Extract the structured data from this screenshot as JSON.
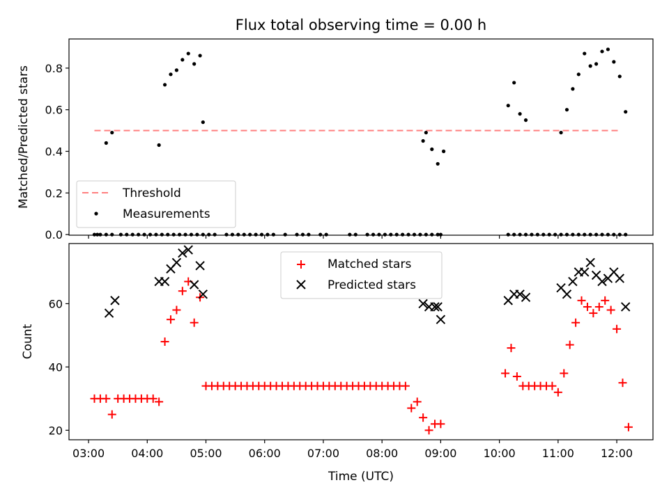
{
  "chart_data": [
    {
      "type": "scatter",
      "title": "Flux total observing time = 0.00 h",
      "xlabel": "",
      "ylabel": "Matched/Predicted stars",
      "xlim": [
        "03:00",
        "12:30"
      ],
      "ylim": [
        0,
        0.9
      ],
      "yticks": [
        "0.0",
        "0.2",
        "0.4",
        "0.6",
        "0.8"
      ],
      "ytick_values": [
        0,
        0.2,
        0.4,
        0.6,
        0.8
      ],
      "grid": false,
      "legend": "lower-left",
      "threshold": {
        "name": "Threshold",
        "value": 0.5,
        "x_start": "03:06",
        "x_end": "12:03",
        "color": "#ff7f7f"
      },
      "series": [
        {
          "name": "Measurements",
          "color": "#000000",
          "x": [
            "03:06",
            "03:09",
            "03:12",
            "03:18",
            "03:24",
            "03:33",
            "03:39",
            "03:45",
            "03:51",
            "03:57",
            "04:03",
            "04:09",
            "04:15",
            "04:21",
            "04:27",
            "04:33",
            "04:39",
            "04:45",
            "04:51",
            "04:57",
            "05:03",
            "05:09",
            "05:21",
            "05:27",
            "05:33",
            "05:39",
            "05:45",
            "05:51",
            "05:57",
            "06:03",
            "06:09",
            "06:21",
            "06:33",
            "06:39",
            "06:45",
            "06:57",
            "07:03",
            "07:27",
            "07:33",
            "07:45",
            "07:51",
            "07:57",
            "08:03",
            "08:09",
            "08:15",
            "08:21",
            "08:27",
            "08:33",
            "08:39",
            "08:45",
            "08:51",
            "08:57",
            "09:00",
            "10:09",
            "10:15",
            "10:21",
            "10:27",
            "10:33",
            "10:39",
            "10:45",
            "10:51",
            "10:57",
            "11:03",
            "11:09",
            "11:15",
            "11:21",
            "11:27",
            "11:33",
            "11:39",
            "11:45",
            "11:51",
            "11:57",
            "12:03",
            "12:09",
            "03:18",
            "03:24",
            "04:12",
            "04:18",
            "04:24",
            "04:30",
            "04:36",
            "04:42",
            "04:48",
            "04:54",
            "04:57",
            "08:42",
            "08:45",
            "08:51",
            "08:57",
            "09:03",
            "10:09",
            "10:15",
            "10:21",
            "10:27",
            "11:03",
            "11:09",
            "11:15",
            "11:21",
            "11:27",
            "11:33",
            "11:39",
            "11:45",
            "11:51",
            "11:57",
            "12:03",
            "12:09"
          ],
          "y": [
            0,
            0,
            0,
            0,
            0,
            0,
            0,
            0,
            0,
            0,
            0,
            0,
            0,
            0,
            0,
            0,
            0,
            0,
            0,
            0,
            0,
            0,
            0,
            0,
            0,
            0,
            0,
            0,
            0,
            0,
            0,
            0,
            0,
            0,
            0,
            0,
            0,
            0,
            0,
            0,
            0,
            0,
            0,
            0,
            0,
            0,
            0,
            0,
            0,
            0,
            0,
            0,
            0,
            0,
            0,
            0,
            0,
            0,
            0,
            0,
            0,
            0,
            0,
            0,
            0,
            0,
            0,
            0,
            0,
            0,
            0,
            0,
            0,
            0,
            0.44,
            0.49,
            0.43,
            0.72,
            0.77,
            0.79,
            0.84,
            0.87,
            0.82,
            0.86,
            0.54,
            0.45,
            0.49,
            0.41,
            0.34,
            0.4,
            0.62,
            0.73,
            0.58,
            0.55,
            0.49,
            0.6,
            0.7,
            0.77,
            0.87,
            0.81,
            0.82,
            0.88,
            0.89,
            0.83,
            0.76,
            0.59
          ]
        }
      ]
    },
    {
      "type": "scatter",
      "title": "",
      "xlabel": "Time (UTC)",
      "ylabel": "Count",
      "xlim": [
        "03:00",
        "12:30"
      ],
      "xticks": [
        "03:00",
        "04:00",
        "05:00",
        "06:00",
        "07:00",
        "08:00",
        "09:00",
        "10:00",
        "11:00",
        "12:00"
      ],
      "ylim": [
        17,
        79
      ],
      "yticks": [
        "20",
        "40",
        "60"
      ],
      "ytick_values": [
        20,
        40,
        60
      ],
      "grid": false,
      "legend": "upper-center",
      "series": [
        {
          "name": "Matched stars",
          "color": "#ff0000",
          "marker": "+",
          "x": [
            "03:06",
            "03:12",
            "03:18",
            "03:24",
            "03:30",
            "03:36",
            "03:42",
            "03:48",
            "03:54",
            "04:00",
            "04:06",
            "04:12",
            "04:18",
            "04:24",
            "04:30",
            "04:36",
            "04:42",
            "04:48",
            "04:54",
            "05:00",
            "05:06",
            "05:12",
            "05:18",
            "05:24",
            "05:30",
            "05:36",
            "05:42",
            "05:48",
            "05:54",
            "06:00",
            "06:06",
            "06:12",
            "06:18",
            "06:24",
            "06:30",
            "06:36",
            "06:42",
            "06:48",
            "06:54",
            "07:00",
            "07:06",
            "07:12",
            "07:18",
            "07:24",
            "07:30",
            "07:36",
            "07:42",
            "07:48",
            "07:54",
            "08:00",
            "08:06",
            "08:12",
            "08:18",
            "08:24",
            "08:30",
            "08:36",
            "08:42",
            "08:48",
            "08:54",
            "09:00",
            "10:06",
            "10:12",
            "10:18",
            "10:24",
            "10:30",
            "10:36",
            "10:42",
            "10:48",
            "10:54",
            "11:00",
            "11:06",
            "11:12",
            "11:18",
            "11:24",
            "11:30",
            "11:36",
            "11:42",
            "11:48",
            "11:54",
            "12:00",
            "12:06",
            "12:12"
          ],
          "y": [
            30,
            30,
            30,
            25,
            30,
            30,
            30,
            30,
            30,
            30,
            30,
            29,
            48,
            55,
            58,
            64,
            67,
            54,
            62,
            34,
            34,
            34,
            34,
            34,
            34,
            34,
            34,
            34,
            34,
            34,
            34,
            34,
            34,
            34,
            34,
            34,
            34,
            34,
            34,
            34,
            34,
            34,
            34,
            34,
            34,
            34,
            34,
            34,
            34,
            34,
            34,
            34,
            34,
            34,
            27,
            29,
            24,
            20,
            22,
            22,
            38,
            46,
            37,
            34,
            34,
            34,
            34,
            34,
            34,
            32,
            38,
            47,
            54,
            61,
            59,
            57,
            59,
            61,
            58,
            52,
            35,
            21
          ]
        },
        {
          "name": "Predicted stars",
          "color": "#000000",
          "marker": "x",
          "x": [
            "03:21",
            "03:27",
            "04:12",
            "04:18",
            "04:24",
            "04:30",
            "04:36",
            "04:42",
            "04:48",
            "04:54",
            "04:57",
            "08:42",
            "08:48",
            "08:54",
            "08:57",
            "09:00",
            "10:09",
            "10:15",
            "10:21",
            "10:27",
            "11:03",
            "11:09",
            "11:15",
            "11:21",
            "11:27",
            "11:33",
            "11:39",
            "11:45",
            "11:51",
            "11:57",
            "12:03",
            "12:09"
          ],
          "y": [
            57,
            61,
            67,
            67,
            71,
            73,
            76,
            77,
            66,
            72,
            63,
            60,
            59,
            59,
            59,
            55,
            61,
            63,
            63,
            62,
            65,
            63,
            67,
            70,
            70,
            73,
            69,
            67,
            68,
            70,
            68,
            59
          ]
        }
      ]
    }
  ],
  "legend_labels": {
    "threshold": "Threshold",
    "measurements": "Measurements",
    "matched": "Matched stars",
    "predicted": "Predicted stars"
  }
}
